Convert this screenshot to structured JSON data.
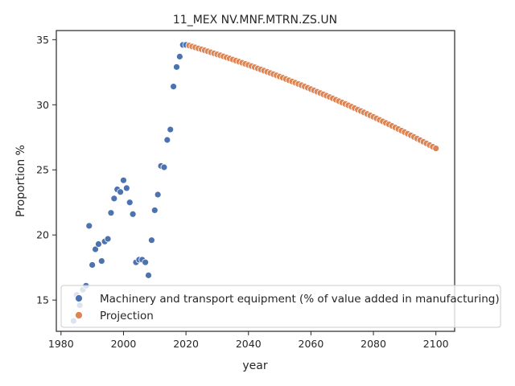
{
  "chart_data": {
    "type": "scatter",
    "title": "11_MEX NV.MNF.MTRN.ZS.UN",
    "xlabel": "year",
    "ylabel": "Proportion %",
    "xlim": [
      1978.5,
      2106
    ],
    "ylim": [
      12.6,
      35.7
    ],
    "x_ticks": [
      1980,
      2000,
      2020,
      2040,
      2060,
      2080,
      2100
    ],
    "y_ticks": [
      15,
      20,
      25,
      30,
      35
    ],
    "grid": false,
    "legend_position": "lower-right",
    "series": [
      {
        "name": "Machinery and transport equipment (% of value added in manufacturing)",
        "color": "#4c72b0",
        "x": [
          1984,
          1985,
          1986,
          1987,
          1988,
          1989,
          1990,
          1991,
          1992,
          1993,
          1994,
          1995,
          1996,
          1997,
          1998,
          1999,
          2000,
          2001,
          2002,
          2003,
          2004,
          2005,
          2006,
          2007,
          2008,
          2009,
          2010,
          2011,
          2012,
          2013,
          2014,
          2015,
          2016,
          2017,
          2018,
          2019,
          2020
        ],
        "y": [
          13.4,
          15.4,
          14.6,
          15.8,
          16.1,
          20.7,
          17.7,
          18.9,
          19.3,
          18.0,
          19.5,
          19.7,
          21.7,
          22.8,
          23.5,
          23.3,
          24.2,
          23.6,
          22.5,
          21.6,
          17.9,
          18.1,
          18.1,
          17.9,
          16.9,
          19.6,
          21.9,
          23.1,
          25.3,
          25.2,
          27.3,
          28.1,
          31.4,
          32.9,
          33.7,
          34.6,
          34.6
        ]
      },
      {
        "name": "Projection",
        "color": "#dd8452",
        "x_start": 2021,
        "x_end": 2100,
        "y_start": 34.55,
        "y_end": 26.65,
        "note_shape": "gently accelerating decline"
      }
    ]
  }
}
